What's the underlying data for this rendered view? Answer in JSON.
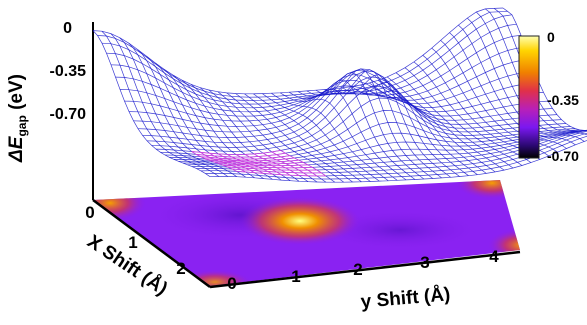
{
  "chart_data": {
    "type": "surface3d",
    "title": "",
    "ylabel_prefix": "Δ",
    "ylabel_var": "E",
    "ylabel_sub": "gap",
    "ylabel_unit": " (eV)",
    "xlabel_front": "X Shift (Å)",
    "xlabel_right": "y Shift (Å)",
    "z_ticks": [
      "0",
      "-0.35",
      "-0.70"
    ],
    "x_ticks": [
      "0",
      "1",
      "2"
    ],
    "y_ticks": [
      "0",
      "1",
      "2",
      "3",
      "4"
    ],
    "colorbar_ticks": [
      "0",
      "-0.35",
      "-0.70"
    ],
    "zlim": [
      -0.7,
      0
    ],
    "xlim": [
      0,
      2.4
    ],
    "ylim": [
      0,
      4.2
    ],
    "colormap": [
      "#000000",
      "#3a0a8c",
      "#7a18f0",
      "#b81ea8",
      "#e43a3a",
      "#f08a00",
      "#ffd400",
      "#ffffc0"
    ],
    "surface_color": "#1a1acc",
    "highlight_color": "#e040e0",
    "grid": false,
    "legend": "colorbar-right",
    "peaks_note": "",
    "surface_samples": [
      {
        "x": 0.0,
        "y": 0.0,
        "z": -0.02
      },
      {
        "x": 0.0,
        "y": 4.2,
        "z": 0.0
      },
      {
        "x": 2.4,
        "y": 0.0,
        "z": -0.48
      },
      {
        "x": 2.4,
        "y": 4.2,
        "z": -0.1
      },
      {
        "x": 1.0,
        "y": 2.3,
        "z": -0.2
      },
      {
        "x": 1.2,
        "y": 0.9,
        "z": -0.62
      }
    ]
  }
}
